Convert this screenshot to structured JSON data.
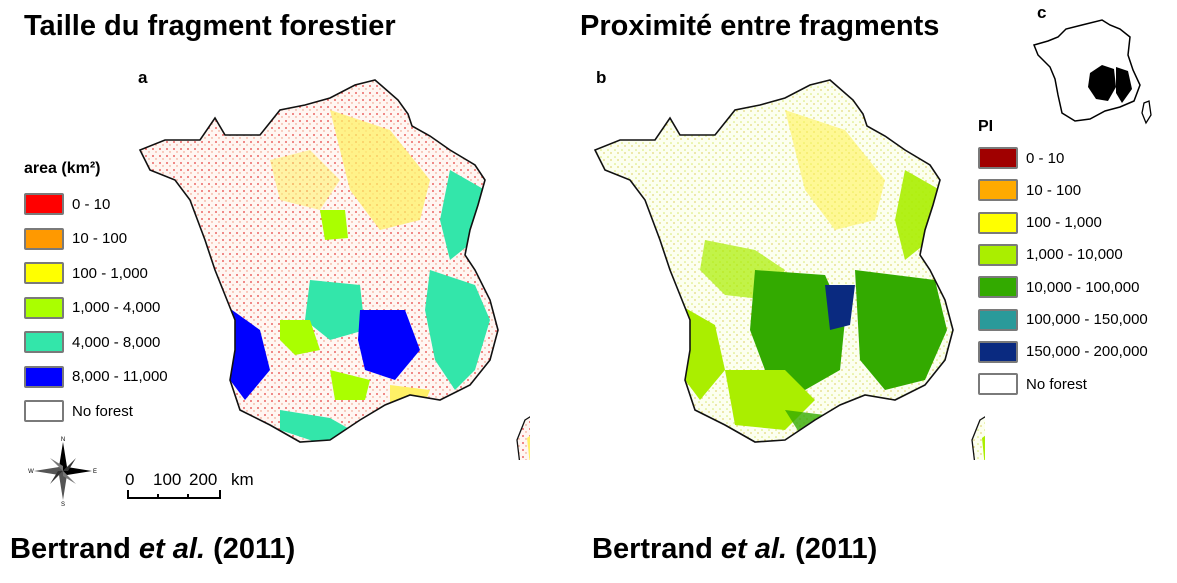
{
  "panels": {
    "a": {
      "title": "Taille du fragment forestier",
      "letter": "a",
      "legend_title": "area (km²)",
      "legend": [
        {
          "label": "0 - 10",
          "color": "#ff0000"
        },
        {
          "label": "10 - 100",
          "color": "#ff9900"
        },
        {
          "label": "100 - 1,000",
          "color": "#ffff00"
        },
        {
          "label": "1,000 - 4,000",
          "color": "#aaff00"
        },
        {
          "label": "4,000 - 8,000",
          "color": "#33e6aa"
        },
        {
          "label": "8,000 - 11,000",
          "color": "#0000ff"
        },
        {
          "label": "No forest",
          "color": "#ffffff"
        }
      ],
      "citation_author": "Bertrand ",
      "citation_etal": "et al.",
      "citation_year": " (2011)"
    },
    "b": {
      "title": "Proximité entre fragments",
      "letter": "b",
      "legend_title": "PI",
      "legend": [
        {
          "label": "0 - 10",
          "color": "#a00000"
        },
        {
          "label": "10 - 100",
          "color": "#ffaa00"
        },
        {
          "label": "100 - 1,000",
          "color": "#ffff00"
        },
        {
          "label": "1,000 - 10,000",
          "color": "#aaee00"
        },
        {
          "label": "10,000 - 100,000",
          "color": "#33aa00"
        },
        {
          "label": "100,000 - 150,000",
          "color": "#2a9a9a"
        },
        {
          "label": "150,000 - 200,000",
          "color": "#0a2a80"
        },
        {
          "label": "No forest",
          "color": "#ffffff"
        }
      ],
      "citation_author": "Bertrand ",
      "citation_etal": "et al.",
      "citation_year": " (2011)"
    },
    "c": {
      "letter": "c"
    }
  },
  "compass": {
    "icon": "compass-rose-icon",
    "n": "N",
    "s": "S",
    "e": "E",
    "w": "W"
  },
  "scalebar": {
    "ticks": [
      "0",
      "100",
      "200"
    ],
    "unit": "km"
  }
}
